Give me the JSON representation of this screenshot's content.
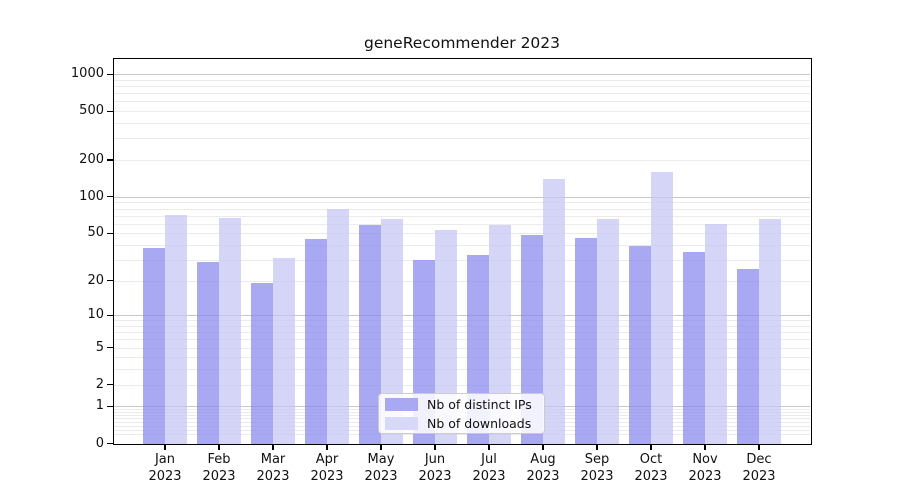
{
  "title": "geneRecommender 2023",
  "legend": {
    "items": [
      {
        "label": "Nb of distinct IPs",
        "color": "#a8a8f3"
      },
      {
        "label": "Nb of downloads",
        "color": "#d8d8f8"
      }
    ]
  },
  "colors": {
    "ips_bar": "rgba(134,134,238,0.72)",
    "downloads_bar": "rgba(197,197,245,0.72)",
    "grid_major": "#c8c8c8",
    "grid_minor": "#ebebeb",
    "frame": "#000000"
  },
  "chart_data": {
    "type": "bar",
    "title": "geneRecommender 2023",
    "categories": [
      "Jan 2023",
      "Feb 2023",
      "Mar 2023",
      "Apr 2023",
      "May 2023",
      "Jun 2023",
      "Jul 2023",
      "Aug 2023",
      "Sep 2023",
      "Oct 2023",
      "Nov 2023",
      "Dec 2023"
    ],
    "series": [
      {
        "name": "Nb of distinct IPs",
        "values": [
          38,
          29,
          19,
          45,
          58,
          30,
          33,
          48,
          46,
          39,
          35,
          25
        ]
      },
      {
        "name": "Nb of downloads",
        "values": [
          71,
          67,
          31,
          80,
          66,
          53,
          58,
          140,
          65,
          158,
          60,
          65
        ]
      }
    ],
    "xlabel": "",
    "ylabel": "",
    "yscale": "log1p",
    "yticks": [
      0,
      1,
      2,
      5,
      10,
      20,
      50,
      100,
      200,
      500,
      1000
    ],
    "ylim": [
      0,
      1300
    ],
    "grid": true,
    "legend_position": "lower center"
  }
}
